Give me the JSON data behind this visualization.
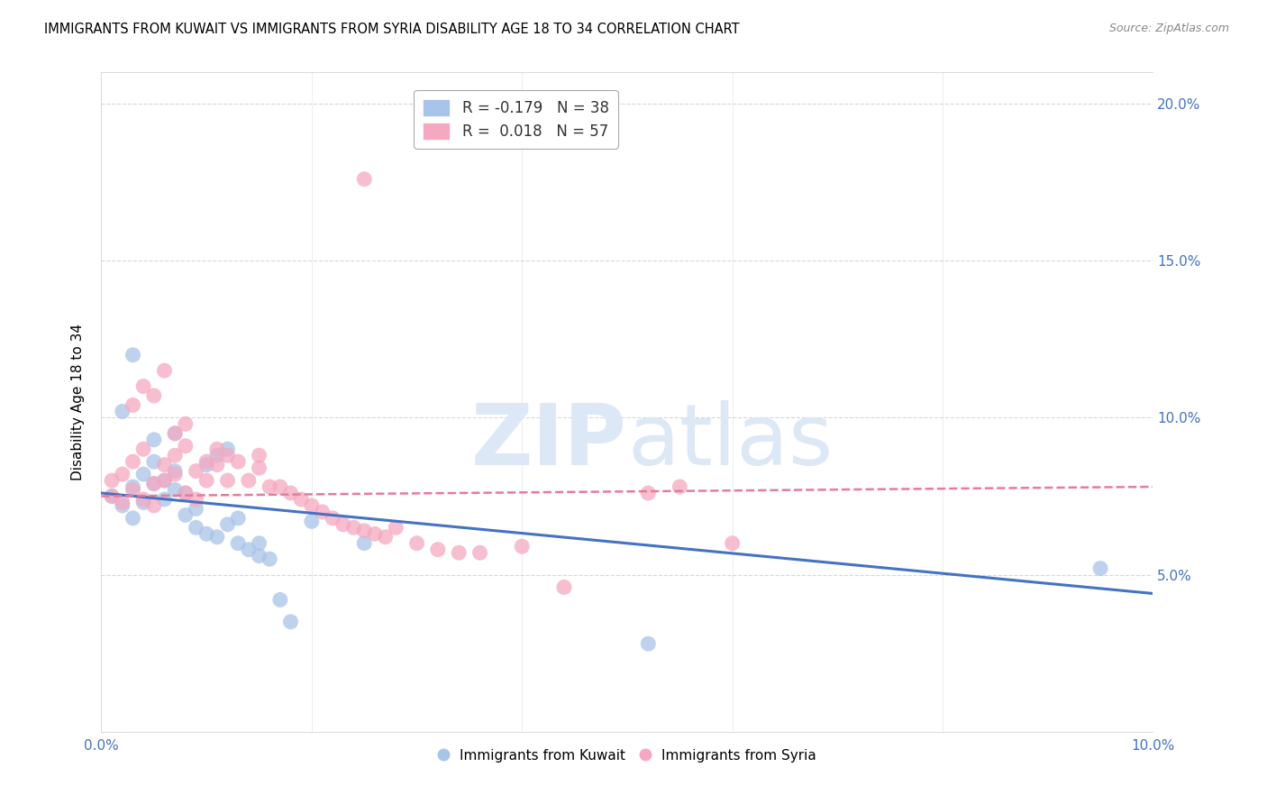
{
  "title": "IMMIGRANTS FROM KUWAIT VS IMMIGRANTS FROM SYRIA DISABILITY AGE 18 TO 34 CORRELATION CHART",
  "source": "Source: ZipAtlas.com",
  "ylabel": "Disability Age 18 to 34",
  "xlim": [
    0.0,
    0.1
  ],
  "ylim": [
    0.0,
    0.21
  ],
  "yticks": [
    0.05,
    0.1,
    0.15,
    0.2
  ],
  "ytick_labels": [
    "5.0%",
    "10.0%",
    "15.0%",
    "20.0%"
  ],
  "xticks": [
    0.0,
    0.02,
    0.04,
    0.06,
    0.08,
    0.1
  ],
  "kuwait_R": -0.179,
  "kuwait_N": 38,
  "syria_R": 0.018,
  "syria_N": 57,
  "kuwait_color": "#a8c4e8",
  "syria_color": "#f5a8c0",
  "line_kuwait_color": "#4472c4",
  "line_syria_color": "#e87a9a",
  "watermark_color": "#dce8f5",
  "background_color": "#ffffff",
  "grid_color": "#cccccc",
  "axis_color": "#4472c4",
  "legend_border_color": "#aaaaaa",
  "kuwait_scatter_x": [
    0.001,
    0.002,
    0.003,
    0.003,
    0.004,
    0.004,
    0.005,
    0.005,
    0.006,
    0.006,
    0.007,
    0.007,
    0.008,
    0.008,
    0.009,
    0.009,
    0.01,
    0.01,
    0.011,
    0.011,
    0.012,
    0.012,
    0.013,
    0.013,
    0.014,
    0.015,
    0.015,
    0.016,
    0.017,
    0.018,
    0.003,
    0.005,
    0.007,
    0.02,
    0.025,
    0.052,
    0.095,
    0.002
  ],
  "kuwait_scatter_y": [
    0.075,
    0.072,
    0.078,
    0.068,
    0.082,
    0.073,
    0.079,
    0.086,
    0.074,
    0.08,
    0.077,
    0.083,
    0.076,
    0.069,
    0.071,
    0.065,
    0.063,
    0.085,
    0.062,
    0.088,
    0.066,
    0.09,
    0.068,
    0.06,
    0.058,
    0.056,
    0.06,
    0.055,
    0.042,
    0.035,
    0.12,
    0.093,
    0.095,
    0.067,
    0.06,
    0.028,
    0.052,
    0.102
  ],
  "syria_scatter_x": [
    0.001,
    0.001,
    0.002,
    0.002,
    0.003,
    0.003,
    0.004,
    0.004,
    0.005,
    0.005,
    0.006,
    0.006,
    0.007,
    0.007,
    0.008,
    0.008,
    0.009,
    0.009,
    0.01,
    0.01,
    0.011,
    0.011,
    0.012,
    0.012,
    0.013,
    0.014,
    0.015,
    0.015,
    0.016,
    0.017,
    0.018,
    0.019,
    0.02,
    0.021,
    0.022,
    0.023,
    0.024,
    0.025,
    0.026,
    0.027,
    0.028,
    0.03,
    0.032,
    0.034,
    0.036,
    0.04,
    0.044,
    0.052,
    0.06,
    0.003,
    0.004,
    0.005,
    0.006,
    0.007,
    0.008,
    0.055,
    0.025
  ],
  "syria_scatter_y": [
    0.075,
    0.08,
    0.073,
    0.082,
    0.077,
    0.086,
    0.074,
    0.09,
    0.072,
    0.079,
    0.08,
    0.085,
    0.082,
    0.088,
    0.076,
    0.091,
    0.074,
    0.083,
    0.08,
    0.086,
    0.085,
    0.09,
    0.088,
    0.08,
    0.086,
    0.08,
    0.088,
    0.084,
    0.078,
    0.078,
    0.076,
    0.074,
    0.072,
    0.07,
    0.068,
    0.066,
    0.065,
    0.064,
    0.063,
    0.062,
    0.065,
    0.06,
    0.058,
    0.057,
    0.057,
    0.059,
    0.046,
    0.076,
    0.06,
    0.104,
    0.11,
    0.107,
    0.115,
    0.095,
    0.098,
    0.078,
    0.176
  ],
  "kuwait_line_x0": 0.0,
  "kuwait_line_x1": 0.1,
  "kuwait_line_y0": 0.076,
  "kuwait_line_y1": 0.044,
  "syria_line_x0": 0.0,
  "syria_line_x1": 0.1,
  "syria_line_y0": 0.075,
  "syria_line_y1": 0.078
}
